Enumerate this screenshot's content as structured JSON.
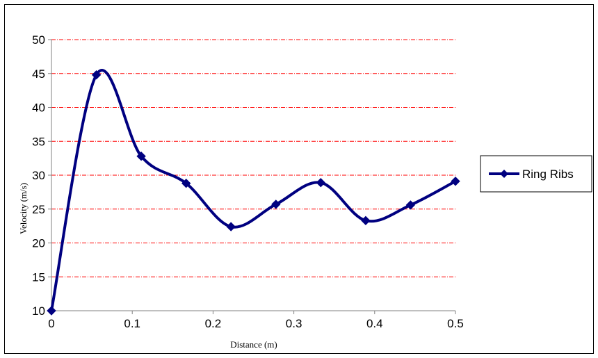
{
  "chart_data": {
    "type": "line",
    "xlabel": "Distance (m)",
    "ylabel": "Velocity (m/s)",
    "xlim": [
      0,
      0.5
    ],
    "ylim": [
      10,
      50
    ],
    "x_ticks": [
      "0",
      "0.1",
      "0.2",
      "0.3",
      "0.4",
      "0.5"
    ],
    "y_ticks": [
      "10",
      "15",
      "20",
      "25",
      "30",
      "35",
      "40",
      "45",
      "50"
    ],
    "grid": "horizontal dash-dot",
    "smoothed": true,
    "legend_position": "right",
    "series": [
      {
        "name": "Ring Ribs",
        "color": "#000080",
        "marker": "diamond",
        "x": [
          0,
          0.0556,
          0.1111,
          0.1667,
          0.2222,
          0.2778,
          0.3333,
          0.3889,
          0.4444,
          0.5
        ],
        "y": [
          10,
          44.8,
          32.8,
          28.8,
          22.4,
          25.7,
          28.9,
          23.3,
          25.6,
          29.1
        ]
      }
    ],
    "colors": {
      "grid": "#ff0000",
      "axis": "#808080",
      "frame": "#000000"
    }
  }
}
